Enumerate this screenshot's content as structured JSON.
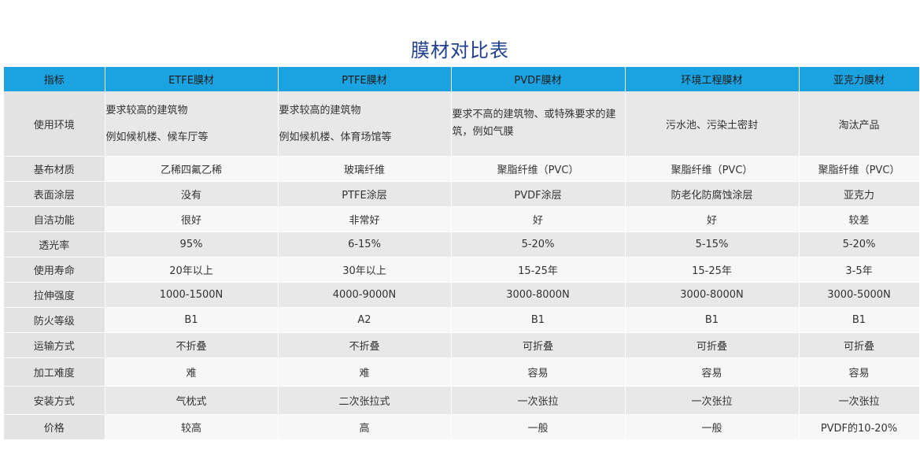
{
  "title": "膜材对比表",
  "headers": [
    "指标",
    "ETFE膜材",
    "PTFE膜材",
    "PVDF膜材",
    "环境工程膜材",
    "亚克力膜材"
  ],
  "env_row": {
    "label": "使用环境",
    "etfe": [
      "要求较高的建筑物",
      "例如候机楼、候车厅等"
    ],
    "ptfe": [
      "要求较高的建筑物",
      "例如候机楼、体育场馆等"
    ],
    "pvdf": [
      "要求不高的建筑物、或特殊要求的建",
      "筑，例如气膜"
    ],
    "env": "污水池、污染土密封",
    "acrylic": "淘汰产品"
  },
  "rows": [
    {
      "label": "基布材质",
      "cells": [
        "乙稀四氟乙稀",
        "玻璃纤维",
        "聚脂纤维（PVC）",
        "聚脂纤维（PVC）",
        "聚脂纤维（PVC）"
      ]
    },
    {
      "label": "表面涂层",
      "cells": [
        "没有",
        "PTFE涂层",
        "PVDF涂层",
        "防老化防腐蚀涂层",
        "亚克力"
      ]
    },
    {
      "label": "自洁功能",
      "cells": [
        "很好",
        "非常好",
        "好",
        "好",
        "较差"
      ]
    },
    {
      "label": "透光率",
      "cells": [
        "95%",
        "6-15%",
        "5-20%",
        "5-15%",
        "5-20%"
      ]
    },
    {
      "label": "使用寿命",
      "cells": [
        "20年以上",
        "30年以上",
        "15-25年",
        "15-25年",
        "3-5年"
      ]
    },
    {
      "label": "拉伸强度",
      "cells": [
        "1000-1500N",
        "4000-9000N",
        "3000-8000N",
        "3000-8000N",
        "3000-5000N"
      ]
    },
    {
      "label": "防火等级",
      "cells": [
        "B1",
        "A2",
        "B1",
        "B1",
        "B1"
      ]
    },
    {
      "label": "运输方式",
      "cells": [
        "不折叠",
        "不折叠",
        "可折叠",
        "可折叠",
        "可折叠"
      ]
    },
    {
      "label": "加工难度",
      "cells": [
        "难",
        "难",
        "容易",
        "容易",
        "容易"
      ]
    },
    {
      "label": "安装方式",
      "cells": [
        "气枕式",
        "二次张拉式",
        "一次张拉",
        "一次张拉",
        "一次张拉"
      ]
    },
    {
      "label": "价格",
      "cells": [
        "较高",
        "高",
        "一般",
        "一般",
        "PVDF的10-20%"
      ]
    }
  ]
}
